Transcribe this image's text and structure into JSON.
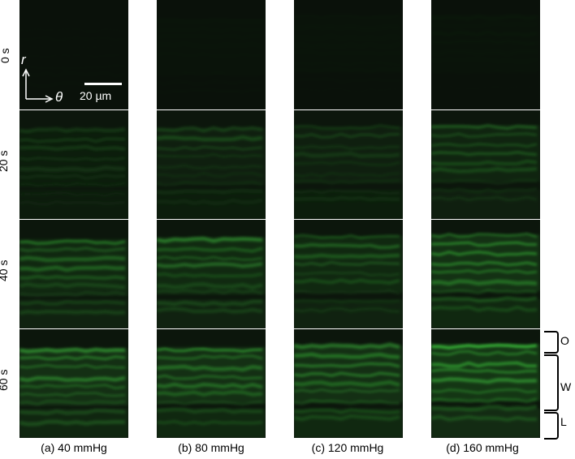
{
  "row_labels": [
    "0 s",
    "20 s",
    "40 s",
    "60 s"
  ],
  "column_labels": [
    "(a) 40 mmHg",
    "(b) 80 mmHg",
    "(c) 120 mmHg",
    "(d) 160 mmHg"
  ],
  "axes": {
    "r_label": "r",
    "theta_label": "θ"
  },
  "scale_bar": {
    "label": "20 µm"
  },
  "brackets": [
    {
      "label": "O"
    },
    {
      "label": "W"
    },
    {
      "label": "L"
    }
  ],
  "colors": {
    "background": "#ffffff",
    "panel_dark": "#0a110a",
    "fluorescence": "#3ec83e",
    "divider": "#ffffff"
  },
  "brightness": {
    "col_a": [
      0.02,
      0.25,
      0.55,
      0.75
    ],
    "col_b": [
      0.03,
      0.3,
      0.6,
      0.8
    ],
    "col_c": [
      0.03,
      0.3,
      0.55,
      0.8
    ],
    "col_d": [
      0.04,
      0.45,
      0.85,
      1.0
    ]
  }
}
